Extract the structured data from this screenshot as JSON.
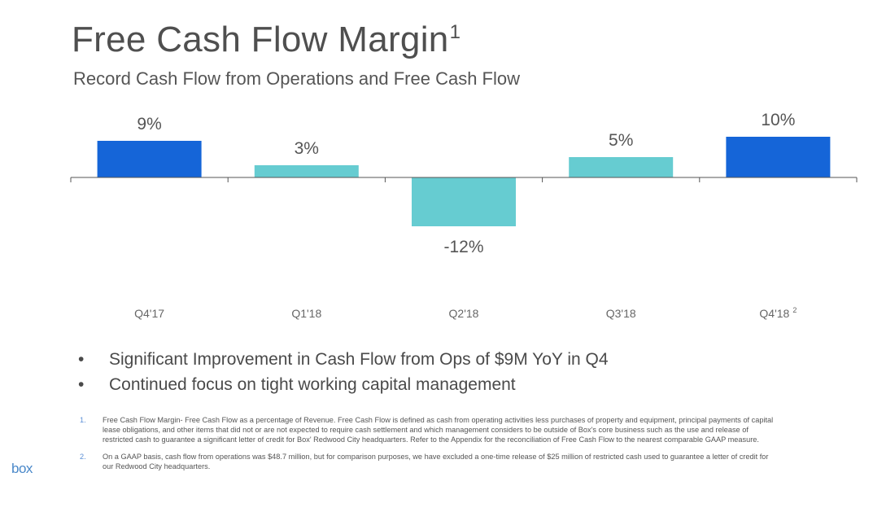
{
  "header": {
    "title": "Free Cash Flow Margin",
    "title_superscript": "1",
    "subtitle": "Record Cash Flow from Operations and Free Cash Flow"
  },
  "chart_data": {
    "type": "bar",
    "title": "Free Cash Flow Margin",
    "categories": [
      "Q4'17",
      "Q1'18",
      "Q2'18",
      "Q3'18",
      "Q4'18"
    ],
    "category_superscripts": [
      "",
      "",
      "",
      "",
      "2"
    ],
    "values": [
      9,
      3,
      -12,
      5,
      10
    ],
    "data_labels": [
      "9%",
      "3%",
      "-12%",
      "5%",
      "10%"
    ],
    "colors": [
      "#1565d8",
      "#66ccd1",
      "#66ccd1",
      "#66ccd1",
      "#1565d8"
    ],
    "xlabel": "",
    "ylabel": "",
    "ylim": [
      -12,
      10
    ],
    "grid": false
  },
  "bullets": [
    "Significant Improvement in Cash Flow from Ops of $9M YoY in Q4",
    "Continued focus on tight working capital management"
  ],
  "footnotes": [
    {
      "num": "1.",
      "text": "Free Cash Flow Margin- Free Cash Flow as a percentage of Revenue. Free Cash Flow is defined as cash from operating activities less purchases of property and equipment, principal payments of capital lease obligations, and other items that did not or are not expected to require cash settlement and which management considers to be outside of Box's core business such as the use and release of restricted cash to guarantee a significant letter of credit for Box' Redwood City headquarters. Refer to the Appendix for the reconciliation of Free Cash Flow to the nearest comparable GAAP measure."
    },
    {
      "num": "2.",
      "text": "On a GAAP basis, cash flow from operations was $48.7 million, but for comparison purposes, we have excluded a one-time release of $25 million of restricted cash used to guarantee a letter of credit for our Redwood City headquarters."
    }
  ],
  "logo": "box",
  "colors": {
    "accent_dark": "#1565d8",
    "accent_light": "#66ccd1",
    "axis": "#555555"
  }
}
